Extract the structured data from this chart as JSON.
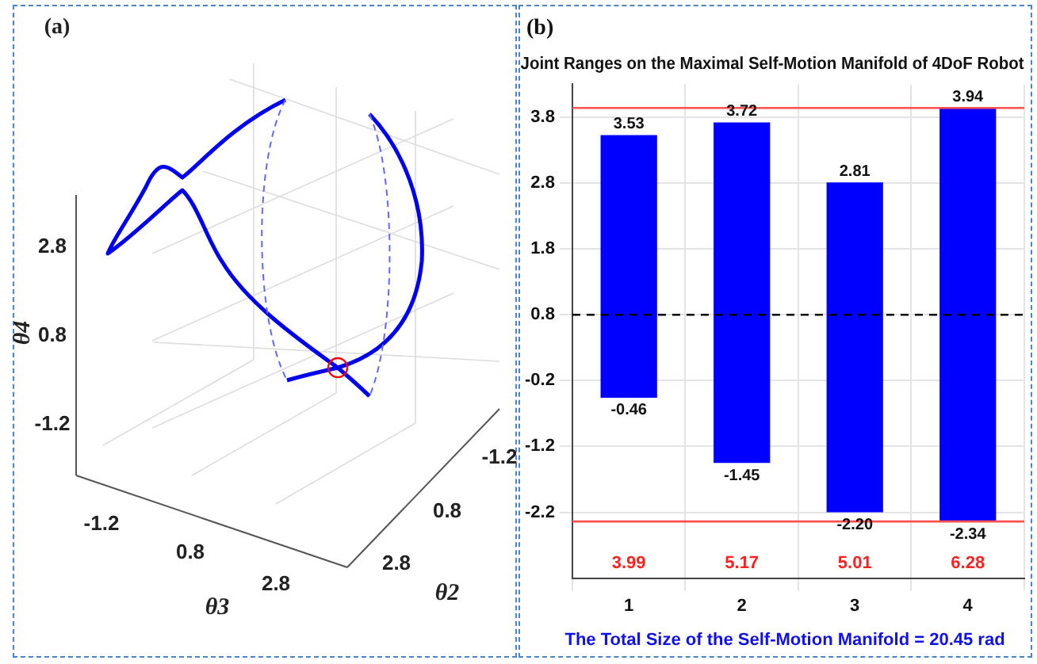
{
  "chart_data": [
    {
      "type": "other",
      "title": "(a)",
      "xlabel": "θ3",
      "ylabel": "θ4",
      "x2label": "θ2",
      "annotations": [
        "-1.2",
        "0.8",
        "2.8",
        "-1.2",
        "0.8",
        "2.8",
        "-1.2",
        "0.8",
        "2.8"
      ]
    },
    {
      "type": "bar",
      "title": "Joint Ranges on the Maximal Self-Motion Manifold of 4DoF Robot",
      "categories": [
        "1",
        "2",
        "3",
        "4"
      ],
      "values": [
        3.99,
        5.17,
        5.01,
        6.28
      ],
      "base": [
        -0.46,
        -1.45,
        -2.2,
        -2.34
      ],
      "color": "#0000ff",
      "ylim": [
        -3.2,
        4.3
      ],
      "yticks": [
        -2.2,
        -1.2,
        -0.2,
        0.8,
        1.8,
        2.8,
        3.8
      ],
      "grid": true,
      "ref_lines": [
        {
          "axis": "y",
          "value": 3.94,
          "color": "#ff5050",
          "line_style": "solid"
        },
        {
          "axis": "y",
          "value": -2.34,
          "color": "#ff5050",
          "line_style": "solid"
        },
        {
          "axis": "y",
          "value": 0.8,
          "color": "#000000",
          "line_style": "dashed"
        }
      ],
      "annotations": [
        "(b)",
        "The Total Size of the Self-Motion Manifold = 20.45 rad",
        {
          "text": "3.53",
          "x": "1",
          "y": 3.53
        },
        {
          "text": "-0.46",
          "x": "1",
          "y": -0.46
        },
        {
          "text": "3.72",
          "x": "2",
          "y": 3.72
        },
        {
          "text": "-1.45",
          "x": "2",
          "y": -1.45
        },
        {
          "text": "2.81",
          "x": "3",
          "y": 2.81
        },
        {
          "text": "-2.20",
          "x": "3",
          "y": -2.2
        },
        {
          "text": "3.94",
          "x": "4",
          "y": 3.94
        },
        {
          "text": "-2.34",
          "x": "4",
          "y": -2.34
        },
        "3.99",
        "5.17",
        "5.01",
        "6.28"
      ]
    }
  ]
}
